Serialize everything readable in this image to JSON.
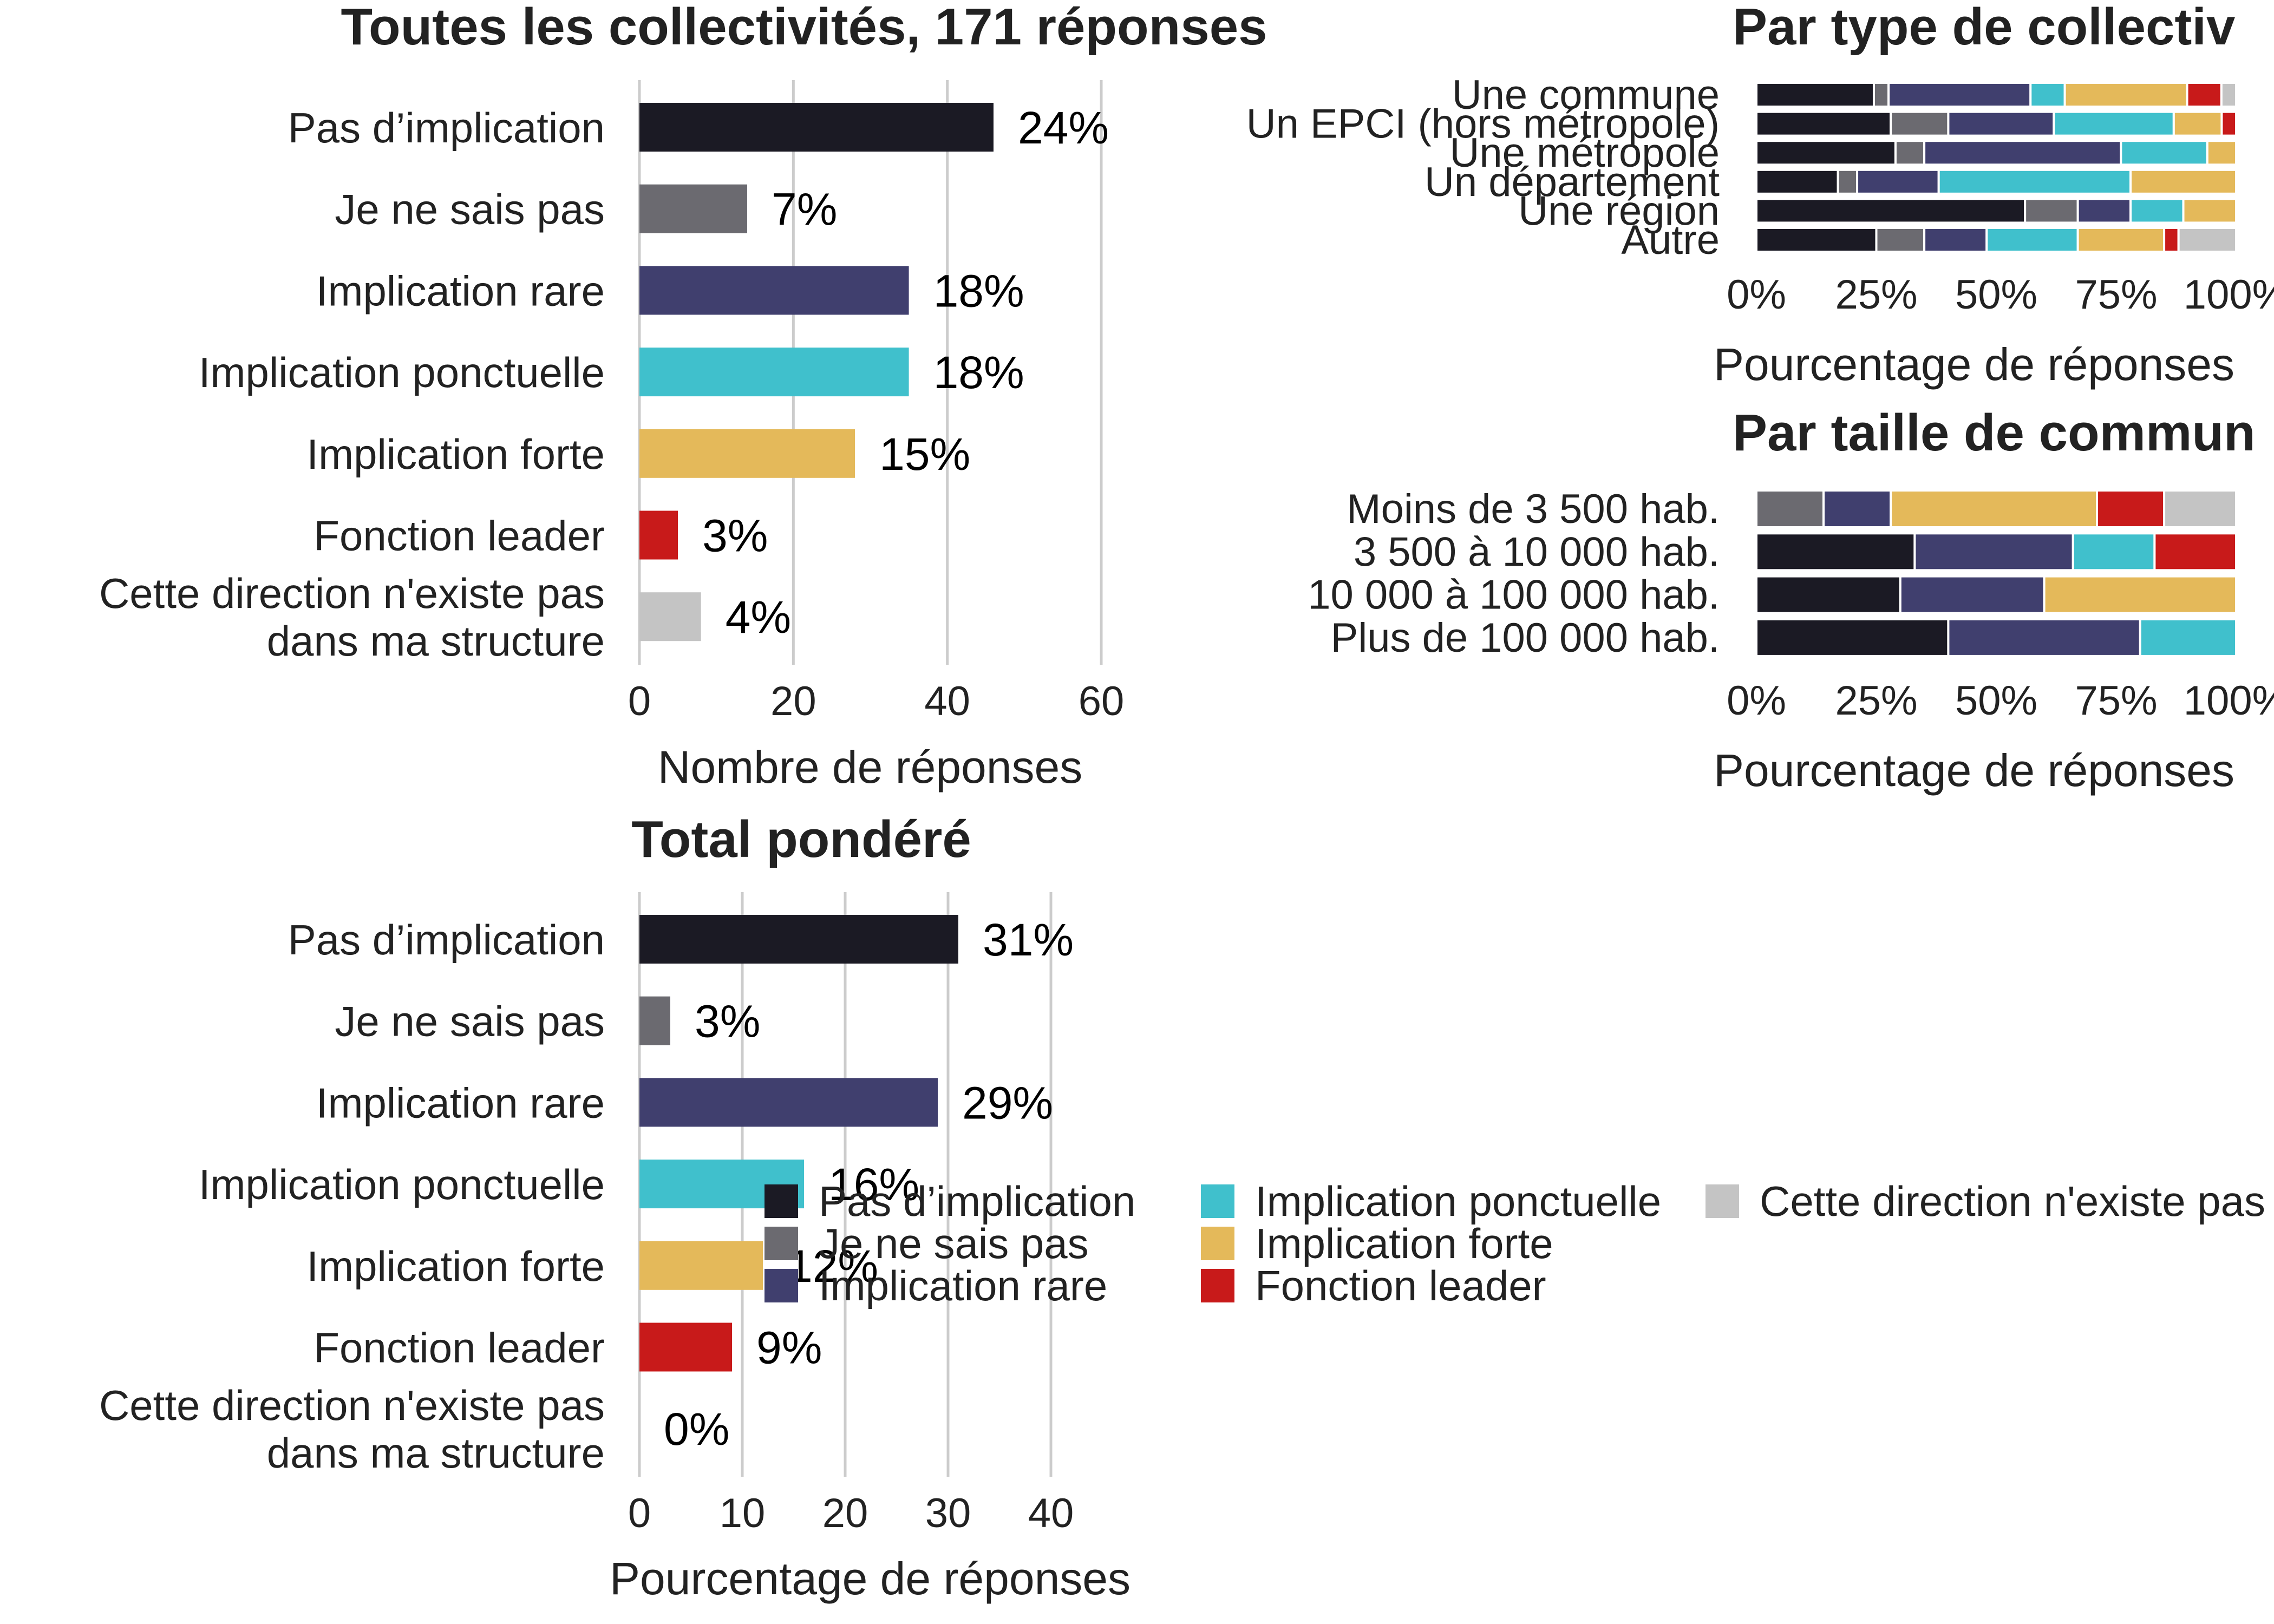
{
  "categories": [
    "Pas d’implication",
    "Je ne sais pas",
    "Implication rare",
    "Implication ponctuelle",
    "Implication forte",
    "Fonction leader",
    "Cette direction n'existe pas dans ma structure"
  ],
  "colors": [
    "#1b1a24",
    "#6b6a70",
    "#403f6e",
    "#40c0cc",
    "#e4b95a",
    "#c81a1a",
    "#c4c4c4"
  ],
  "legend": {
    "items": [
      "Pas d’implication",
      "Je ne sais pas",
      "Implication rare",
      "Implication ponctuelle",
      "Implication forte",
      "Fonction leader",
      "Cette direction n'existe pas"
    ]
  },
  "chart_data": [
    {
      "type": "bar",
      "orientation": "horizontal",
      "title": "Toutes les collectivités, 171 réponses",
      "category_labels": [
        [
          "Pas d’implication"
        ],
        [
          "Je ne sais pas"
        ],
        [
          "Implication rare"
        ],
        [
          "Implication ponctuelle"
        ],
        [
          "Implication forte"
        ],
        [
          "Fonction leader"
        ],
        [
          "Cette direction n'existe pas",
          "dans ma structure"
        ]
      ],
      "values": [
        46,
        14,
        35,
        35,
        28,
        5,
        8
      ],
      "data_labels": [
        "24%",
        "7%",
        "18%",
        "18%",
        "15%",
        "3%",
        "4%"
      ],
      "xlabel": "Nombre de réponses",
      "xlim": [
        0,
        60
      ],
      "xticks": [
        0,
        20,
        40,
        60
      ],
      "grid": true
    },
    {
      "type": "bar",
      "orientation": "horizontal",
      "title": "Total pondéré",
      "category_labels": [
        [
          "Pas d’implication"
        ],
        [
          "Je ne sais pas"
        ],
        [
          "Implication rare"
        ],
        [
          "Implication ponctuelle"
        ],
        [
          "Implication forte"
        ],
        [
          "Fonction leader"
        ],
        [
          "Cette direction n'existe pas",
          "dans ma structure"
        ]
      ],
      "values": [
        31,
        3,
        29,
        16,
        12,
        9,
        0
      ],
      "data_labels": [
        "31%",
        "3%",
        "29%",
        "16%",
        "12%",
        "9%",
        "0%"
      ],
      "xlabel": "Pourcentage de réponses",
      "xlim": [
        0,
        40
      ],
      "xticks": [
        0,
        10,
        20,
        30,
        40
      ],
      "grid": true
    },
    {
      "type": "bar",
      "orientation": "horizontal",
      "stacked": "percent",
      "title": "Par type de collectiv",
      "rows": [
        "Une commune",
        "Un EPCI (hors métropole)",
        "Une métropole",
        "Un département",
        "Une région",
        "Autre"
      ],
      "series_order": [
        "Pas d’implication",
        "Je ne sais pas",
        "Implication rare",
        "Implication ponctuelle",
        "Implication forte",
        "Fonction leader",
        "Cette direction n'existe pas"
      ],
      "shares": [
        [
          24,
          3,
          29,
          7,
          25,
          7,
          3
        ],
        [
          28,
          12,
          22,
          25,
          10,
          3,
          0
        ],
        [
          29,
          6,
          41,
          18,
          6,
          0,
          0
        ],
        [
          17,
          4,
          17,
          40,
          22,
          0,
          0
        ],
        [
          56,
          11,
          11,
          11,
          11,
          0,
          0
        ],
        [
          25,
          10,
          13,
          19,
          18,
          3,
          12
        ]
      ],
      "xlabel": "Pourcentage de réponses",
      "xlim": [
        0,
        100
      ],
      "xticks": [
        "0%",
        "25%",
        "50%",
        "75%",
        "100%"
      ]
    },
    {
      "type": "bar",
      "orientation": "horizontal",
      "stacked": "percent",
      "title": "Par taille de commun",
      "rows": [
        "Moins de 3 500 hab.",
        "3 500 à 10 000 hab.",
        "10 000 à 100 000 hab.",
        "Plus de 100 000 hab."
      ],
      "series_order": [
        "Pas d’implication",
        "Je ne sais pas",
        "Implication rare",
        "Implication ponctuelle",
        "Implication forte",
        "Fonction leader",
        "Cette direction n'existe pas"
      ],
      "shares": [
        [
          0,
          14,
          14,
          0,
          43,
          14,
          15
        ],
        [
          33,
          0,
          33,
          17,
          0,
          17,
          0
        ],
        [
          30,
          0,
          30,
          0,
          40,
          0,
          0
        ],
        [
          40,
          0,
          40,
          20,
          0,
          0,
          0
        ]
      ],
      "xlabel": "Pourcentage de réponses",
      "xlim": [
        0,
        100
      ],
      "xticks": [
        "0%",
        "25%",
        "50%",
        "75%",
        "100%"
      ]
    }
  ]
}
